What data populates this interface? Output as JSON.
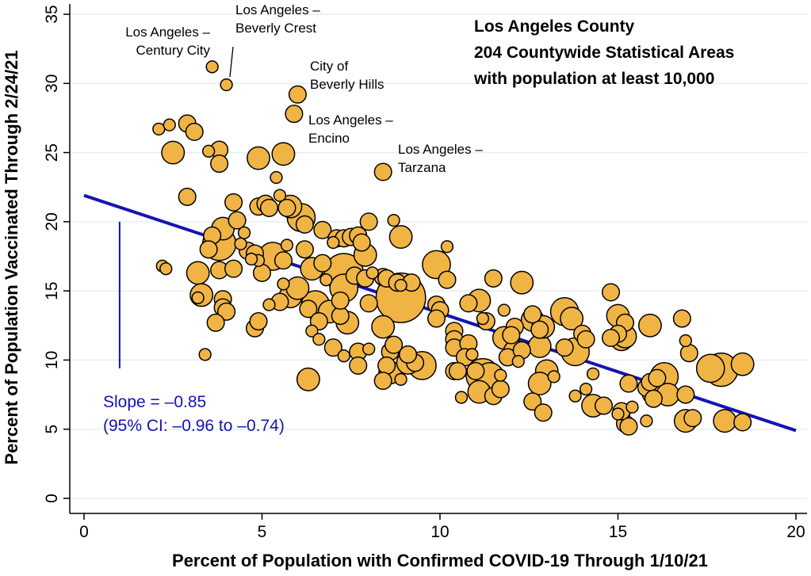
{
  "chart_data": {
    "type": "scatter",
    "title": [
      "Los Angeles County",
      "204 Countywide Statistical Areas",
      "with population at least 10,000"
    ],
    "xlabel": "Percent of Population with Confirmed COVID-19 Through 1/10/21",
    "ylabel": "Percent of Population Vaccinated Through 2/24/21",
    "xlim": [
      0,
      20
    ],
    "ylim": [
      0,
      35
    ],
    "xticks": [
      "0",
      "5",
      "10",
      "15",
      "20"
    ],
    "yticks": [
      "0",
      "5",
      "10",
      "15",
      "20",
      "25",
      "30",
      "35"
    ],
    "grid": "horizontal",
    "colors": {
      "marker_fill": "#f0b445",
      "marker_edge": "#000000",
      "fit_line": "#1414b4"
    },
    "fit": {
      "slope": -0.85,
      "intercept": 21.9,
      "x_range": [
        0,
        20
      ]
    },
    "slope_label": [
      "Slope = –0.85",
      "(95% CI: –0.96 to –0.74)"
    ],
    "annotations": [
      {
        "lines": [
          "Los Angeles –",
          "Century City"
        ],
        "x": 3.6,
        "y": 31.2
      },
      {
        "lines": [
          "Los Angeles –",
          "Beverly Crest"
        ],
        "x": 4.0,
        "y": 29.9
      },
      {
        "lines": [
          "City of",
          "Beverly Hills"
        ],
        "x": 6.0,
        "y": 29.2
      },
      {
        "lines": [
          "Los Angeles –",
          "Encino"
        ],
        "x": 5.9,
        "y": 27.8
      },
      {
        "lines": [
          "Los Angeles –",
          "Tarzana"
        ],
        "x": 8.4,
        "y": 23.6
      }
    ],
    "points": [
      [
        3.6,
        31.2,
        1
      ],
      [
        4.0,
        29.9,
        1
      ],
      [
        6.0,
        29.2,
        2
      ],
      [
        5.9,
        27.8,
        2
      ],
      [
        8.4,
        23.6,
        2
      ],
      [
        2.1,
        26.7,
        1
      ],
      [
        2.4,
        27.0,
        1
      ],
      [
        2.9,
        27.1,
        2
      ],
      [
        3.1,
        26.5,
        2
      ],
      [
        2.5,
        25.0,
        3
      ],
      [
        3.5,
        25.1,
        1
      ],
      [
        3.8,
        25.2,
        2
      ],
      [
        3.8,
        24.2,
        2
      ],
      [
        4.9,
        24.6,
        3
      ],
      [
        5.6,
        24.9,
        3
      ],
      [
        5.4,
        23.2,
        1
      ],
      [
        2.9,
        21.8,
        2
      ],
      [
        4.2,
        21.4,
        2
      ],
      [
        4.9,
        21.1,
        2
      ],
      [
        5.1,
        21.3,
        2
      ],
      [
        5.5,
        21.9,
        1
      ],
      [
        5.7,
        21.0,
        2
      ],
      [
        5.2,
        21.0,
        2
      ],
      [
        5.8,
        21.1,
        3
      ],
      [
        6.1,
        20.3,
        4
      ],
      [
        6.2,
        19.8,
        2
      ],
      [
        4.3,
        20.1,
        2
      ],
      [
        3.6,
        19.0,
        2
      ],
      [
        3.9,
        19.5,
        3
      ],
      [
        3.8,
        18.4,
        5
      ],
      [
        4.4,
        18.4,
        1
      ],
      [
        3.5,
        18.0,
        2
      ],
      [
        4.6,
        17.9,
        2
      ],
      [
        4.8,
        17.7,
        2
      ],
      [
        4.9,
        17.2,
        1
      ],
      [
        5.3,
        17.5,
        4
      ],
      [
        5.7,
        18.3,
        1
      ],
      [
        5.6,
        17.2,
        2
      ],
      [
        5.0,
        16.3,
        2
      ],
      [
        2.2,
        16.8,
        1
      ],
      [
        2.3,
        16.6,
        1
      ],
      [
        3.2,
        16.3,
        3
      ],
      [
        3.8,
        16.5,
        2
      ],
      [
        4.2,
        16.6,
        2
      ],
      [
        6.4,
        16.6,
        3
      ],
      [
        6.7,
        17.0,
        2
      ],
      [
        6.2,
        18.0,
        2
      ],
      [
        6.7,
        19.4,
        2
      ],
      [
        7.0,
        18.5,
        1
      ],
      [
        7.1,
        18.8,
        2
      ],
      [
        7.3,
        18.8,
        2
      ],
      [
        7.5,
        18.9,
        2
      ],
      [
        7.7,
        19.0,
        2
      ],
      [
        7.8,
        18.5,
        2
      ],
      [
        7.9,
        17.6,
        3
      ],
      [
        7.3,
        16.3,
        6
      ],
      [
        7.3,
        15.2,
        4
      ],
      [
        7.6,
        16.1,
        2
      ],
      [
        7.9,
        15.9,
        2
      ],
      [
        8.1,
        16.3,
        1
      ],
      [
        8.4,
        16.0,
        2
      ],
      [
        8.5,
        15.9,
        2
      ],
      [
        8.9,
        14.5,
        8
      ],
      [
        8.8,
        15.6,
        2
      ],
      [
        8.9,
        15.4,
        1
      ],
      [
        8.9,
        18.9,
        3
      ],
      [
        8.7,
        20.1,
        1
      ],
      [
        8.0,
        20.0,
        2
      ],
      [
        3.3,
        14.7,
        3
      ],
      [
        3.2,
        14.5,
        1
      ],
      [
        3.9,
        14.4,
        2
      ],
      [
        3.9,
        13.8,
        2
      ],
      [
        4.0,
        13.5,
        2
      ],
      [
        3.7,
        12.7,
        2
      ],
      [
        3.4,
        10.4,
        1
      ],
      [
        4.8,
        12.3,
        2
      ],
      [
        4.9,
        12.8,
        2
      ],
      [
        5.2,
        14.0,
        1
      ],
      [
        5.5,
        14.2,
        2
      ],
      [
        5.8,
        14.6,
        3
      ],
      [
        6.0,
        15.2,
        3
      ],
      [
        6.3,
        13.7,
        2
      ],
      [
        6.5,
        14.0,
        4
      ],
      [
        6.4,
        12.1,
        1
      ],
      [
        6.6,
        12.8,
        2
      ],
      [
        6.9,
        13.5,
        3
      ],
      [
        7.2,
        13.2,
        2
      ],
      [
        7.4,
        12.7,
        3
      ],
      [
        7.0,
        10.9,
        2
      ],
      [
        7.3,
        10.3,
        1
      ],
      [
        7.7,
        10.6,
        2
      ],
      [
        7.7,
        9.6,
        2
      ],
      [
        8.0,
        10.8,
        1
      ],
      [
        8.0,
        14.1,
        2
      ],
      [
        8.4,
        12.4,
        3
      ],
      [
        8.6,
        10.6,
        2
      ],
      [
        8.7,
        11.1,
        2
      ],
      [
        8.5,
        9.6,
        2
      ],
      [
        8.6,
        9.1,
        3
      ],
      [
        8.4,
        8.5,
        2
      ],
      [
        8.9,
        8.6,
        1
      ],
      [
        9.1,
        9.8,
        3
      ],
      [
        9.3,
        9.8,
        2
      ],
      [
        9.5,
        9.6,
        4
      ],
      [
        9.1,
        10.4,
        2
      ],
      [
        6.3,
        8.6,
        3
      ],
      [
        9.9,
        16.9,
        4
      ],
      [
        10.2,
        15.8,
        2
      ],
      [
        10.2,
        18.2,
        1
      ],
      [
        9.9,
        14.0,
        2
      ],
      [
        10.0,
        13.6,
        2
      ],
      [
        9.9,
        13.0,
        2
      ],
      [
        10.4,
        12.1,
        2
      ],
      [
        10.4,
        11.5,
        2
      ],
      [
        10.4,
        10.9,
        2
      ],
      [
        10.8,
        11.2,
        2
      ],
      [
        10.7,
        10.2,
        2
      ],
      [
        10.4,
        9.2,
        2
      ],
      [
        10.5,
        9.2,
        2
      ],
      [
        10.6,
        7.3,
        1
      ],
      [
        10.8,
        14.1,
        2
      ],
      [
        11.1,
        14.3,
        3
      ],
      [
        11.2,
        13.0,
        1
      ],
      [
        11.3,
        12.8,
        2
      ],
      [
        11.5,
        15.9,
        2
      ],
      [
        11.0,
        9.2,
        2
      ],
      [
        11.2,
        8.9,
        5
      ],
      [
        11.4,
        8.8,
        4
      ],
      [
        11.1,
        7.7,
        3
      ],
      [
        11.5,
        7.4,
        2
      ],
      [
        11.7,
        7.9,
        2
      ],
      [
        11.9,
        10.2,
        2
      ],
      [
        11.8,
        11.6,
        3
      ],
      [
        11.8,
        13.6,
        1
      ],
      [
        11.7,
        8.9,
        1
      ],
      [
        12.3,
        15.6,
        3
      ],
      [
        12.1,
        10.6,
        3
      ],
      [
        12.1,
        12.4,
        2
      ],
      [
        12.0,
        11.8,
        2
      ],
      [
        12.3,
        10.7,
        2
      ],
      [
        12.6,
        13.3,
        2
      ],
      [
        12.6,
        12.9,
        3
      ],
      [
        12.8,
        12.2,
        2
      ],
      [
        12.8,
        11.0,
        3
      ],
      [
        13.0,
        9.2,
        3
      ],
      [
        12.8,
        8.3,
        3
      ],
      [
        12.6,
        7.0,
        2
      ],
      [
        12.9,
        6.2,
        2
      ],
      [
        12.9,
        12.4,
        3
      ],
      [
        13.5,
        13.5,
        4
      ],
      [
        13.7,
        13.0,
        3
      ],
      [
        13.8,
        10.6,
        4
      ],
      [
        14.0,
        11.9,
        2
      ],
      [
        14.1,
        11.5,
        2
      ],
      [
        13.5,
        10.9,
        2
      ],
      [
        13.8,
        7.4,
        1
      ],
      [
        14.3,
        6.7,
        3
      ],
      [
        14.3,
        9.0,
        1
      ],
      [
        14.8,
        14.9,
        2
      ],
      [
        15.0,
        13.2,
        3
      ],
      [
        15.2,
        12.7,
        2
      ],
      [
        15.0,
        11.9,
        2
      ],
      [
        15.1,
        11.5,
        3
      ],
      [
        14.8,
        11.6,
        2
      ],
      [
        15.2,
        11.7,
        3
      ],
      [
        14.6,
        6.7,
        2
      ],
      [
        15.1,
        6.2,
        2
      ],
      [
        15.2,
        5.4,
        2
      ],
      [
        15.4,
        6.6,
        1
      ],
      [
        15.3,
        8.3,
        2
      ],
      [
        15.8,
        8.0,
        2
      ],
      [
        15.9,
        8.4,
        2
      ],
      [
        16.0,
        7.6,
        3
      ],
      [
        16.1,
        8.7,
        2
      ],
      [
        16.3,
        8.8,
        4
      ],
      [
        16.4,
        7.5,
        3
      ],
      [
        16.0,
        7.2,
        2
      ],
      [
        15.8,
        5.6,
        1
      ],
      [
        15.9,
        12.5,
        3
      ],
      [
        16.8,
        13.0,
        2
      ],
      [
        16.9,
        11.4,
        1
      ],
      [
        17.0,
        10.5,
        2
      ],
      [
        16.9,
        7.5,
        2
      ],
      [
        16.9,
        5.6,
        3
      ],
      [
        17.1,
        5.8,
        2
      ],
      [
        17.6,
        9.4,
        4
      ],
      [
        17.9,
        9.3,
        5
      ],
      [
        18.0,
        5.6,
        3
      ],
      [
        18.5,
        5.5,
        2
      ],
      [
        18.5,
        9.7,
        3
      ],
      [
        15.3,
        5.2,
        2
      ],
      [
        15.1,
        6.3,
        2
      ],
      [
        15.0,
        6.1,
        1
      ],
      [
        13.2,
        8.8,
        1
      ],
      [
        14.1,
        7.9,
        1
      ],
      [
        10.9,
        10.4,
        1
      ],
      [
        12.2,
        9.9,
        1
      ],
      [
        9.2,
        15.6,
        2
      ],
      [
        7.2,
        14.3,
        2
      ],
      [
        6.8,
        15.8,
        1
      ],
      [
        5.6,
        15.5,
        1
      ],
      [
        4.5,
        19.2,
        1
      ],
      [
        4.7,
        17.3,
        1
      ],
      [
        6.6,
        11.5,
        1
      ]
    ]
  }
}
